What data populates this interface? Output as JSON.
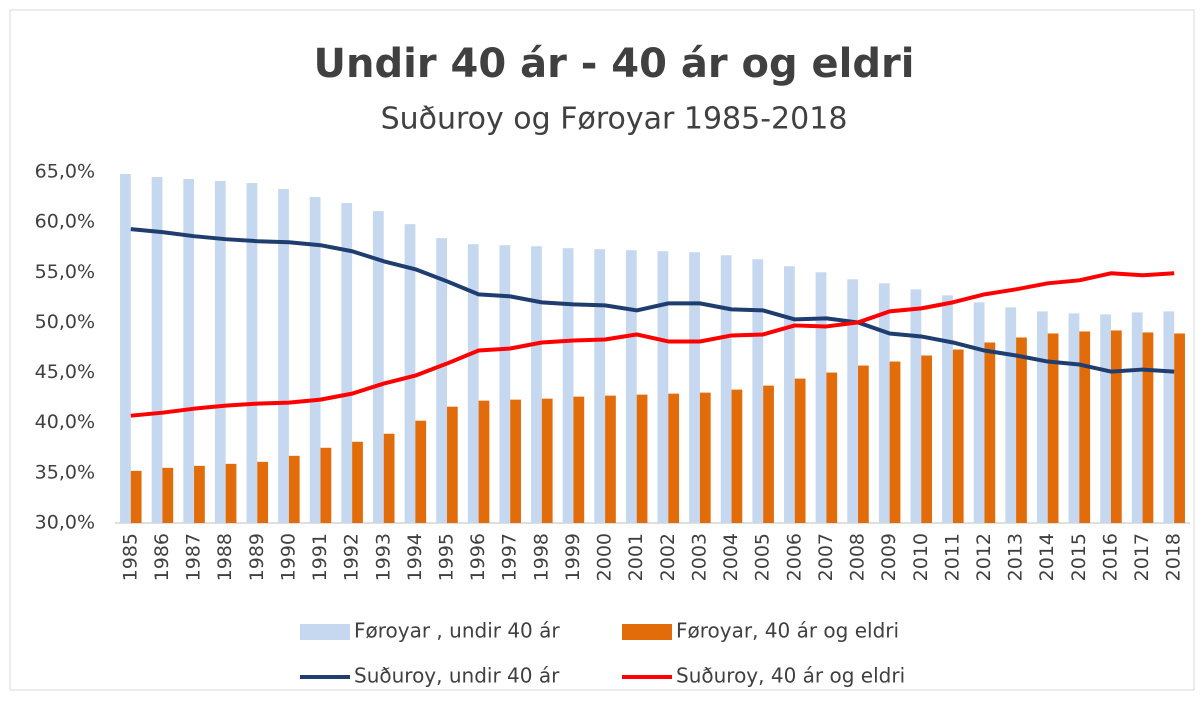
{
  "chart_data": {
    "type": "bar",
    "title": "Undir 40 ár - 40 ár og eldri",
    "subtitle": "Suðuroy og Føroyar 1985-2018",
    "categories": [
      "1985",
      "1986",
      "1987",
      "1988",
      "1989",
      "1990",
      "1991",
      "1992",
      "1993",
      "1994",
      "1995",
      "1996",
      "1997",
      "1998",
      "1999",
      "2000",
      "2001",
      "2002",
      "2003",
      "2004",
      "2005",
      "2006",
      "2007",
      "2008",
      "2009",
      "2010",
      "2011",
      "2012",
      "2013",
      "2014",
      "2015",
      "2016",
      "2017",
      "2018"
    ],
    "series": [
      {
        "name": "Føroyar , undir 40 ár",
        "type": "bar",
        "color": "#c5d8f0",
        "values": [
          64.8,
          64.5,
          64.3,
          64.1,
          63.9,
          63.3,
          62.5,
          61.9,
          61.1,
          59.8,
          58.4,
          57.8,
          57.7,
          57.6,
          57.4,
          57.3,
          57.2,
          57.1,
          57.0,
          56.7,
          56.3,
          55.6,
          55.0,
          54.3,
          53.9,
          53.3,
          52.7,
          52.0,
          51.5,
          51.1,
          50.9,
          50.8,
          51.0,
          51.1
        ]
      },
      {
        "name": "Føroyar, 40 ár og eldri",
        "type": "bar",
        "color": "#e36c0a",
        "values": [
          35.2,
          35.5,
          35.7,
          35.9,
          36.1,
          36.7,
          37.5,
          38.1,
          38.9,
          40.2,
          41.6,
          42.2,
          42.3,
          42.4,
          42.6,
          42.7,
          42.8,
          42.9,
          43.0,
          43.3,
          43.7,
          44.4,
          45.0,
          45.7,
          46.1,
          46.7,
          47.3,
          48.0,
          48.5,
          48.9,
          49.1,
          49.2,
          49.0,
          48.9
        ]
      },
      {
        "name": "Suðuroy, undir 40 ár",
        "type": "line",
        "color": "#1f3d6e",
        "values": [
          59.3,
          59.0,
          58.6,
          58.3,
          58.1,
          58.0,
          57.7,
          57.1,
          56.1,
          55.3,
          54.1,
          52.8,
          52.6,
          52.0,
          51.8,
          51.7,
          51.2,
          51.9,
          51.9,
          51.3,
          51.2,
          50.3,
          50.4,
          50.0,
          48.9,
          48.6,
          48.0,
          47.2,
          46.7,
          46.1,
          45.8,
          45.1,
          45.3,
          45.1
        ]
      },
      {
        "name": "Suðuroy, 40 ár og eldri",
        "type": "line",
        "color": "#ff0000",
        "values": [
          40.7,
          41.0,
          41.4,
          41.7,
          41.9,
          42.0,
          42.3,
          42.9,
          43.9,
          44.7,
          45.9,
          47.2,
          47.4,
          48.0,
          48.2,
          48.3,
          48.8,
          48.1,
          48.1,
          48.7,
          48.8,
          49.7,
          49.6,
          50.0,
          51.1,
          51.4,
          52.0,
          52.8,
          53.3,
          53.9,
          54.2,
          54.9,
          54.7,
          54.9
        ]
      }
    ],
    "ylim": [
      30,
      65
    ],
    "yticks": [
      {
        "value": 30,
        "label": "30,0%"
      },
      {
        "value": 35,
        "label": "35,0%"
      },
      {
        "value": 40,
        "label": "40,0%"
      },
      {
        "value": 45,
        "label": "45,0%"
      },
      {
        "value": 50,
        "label": "50,0%"
      },
      {
        "value": 55,
        "label": "55,0%"
      },
      {
        "value": 60,
        "label": "60,0%"
      },
      {
        "value": 65,
        "label": "65,0%"
      }
    ],
    "grid": false
  }
}
